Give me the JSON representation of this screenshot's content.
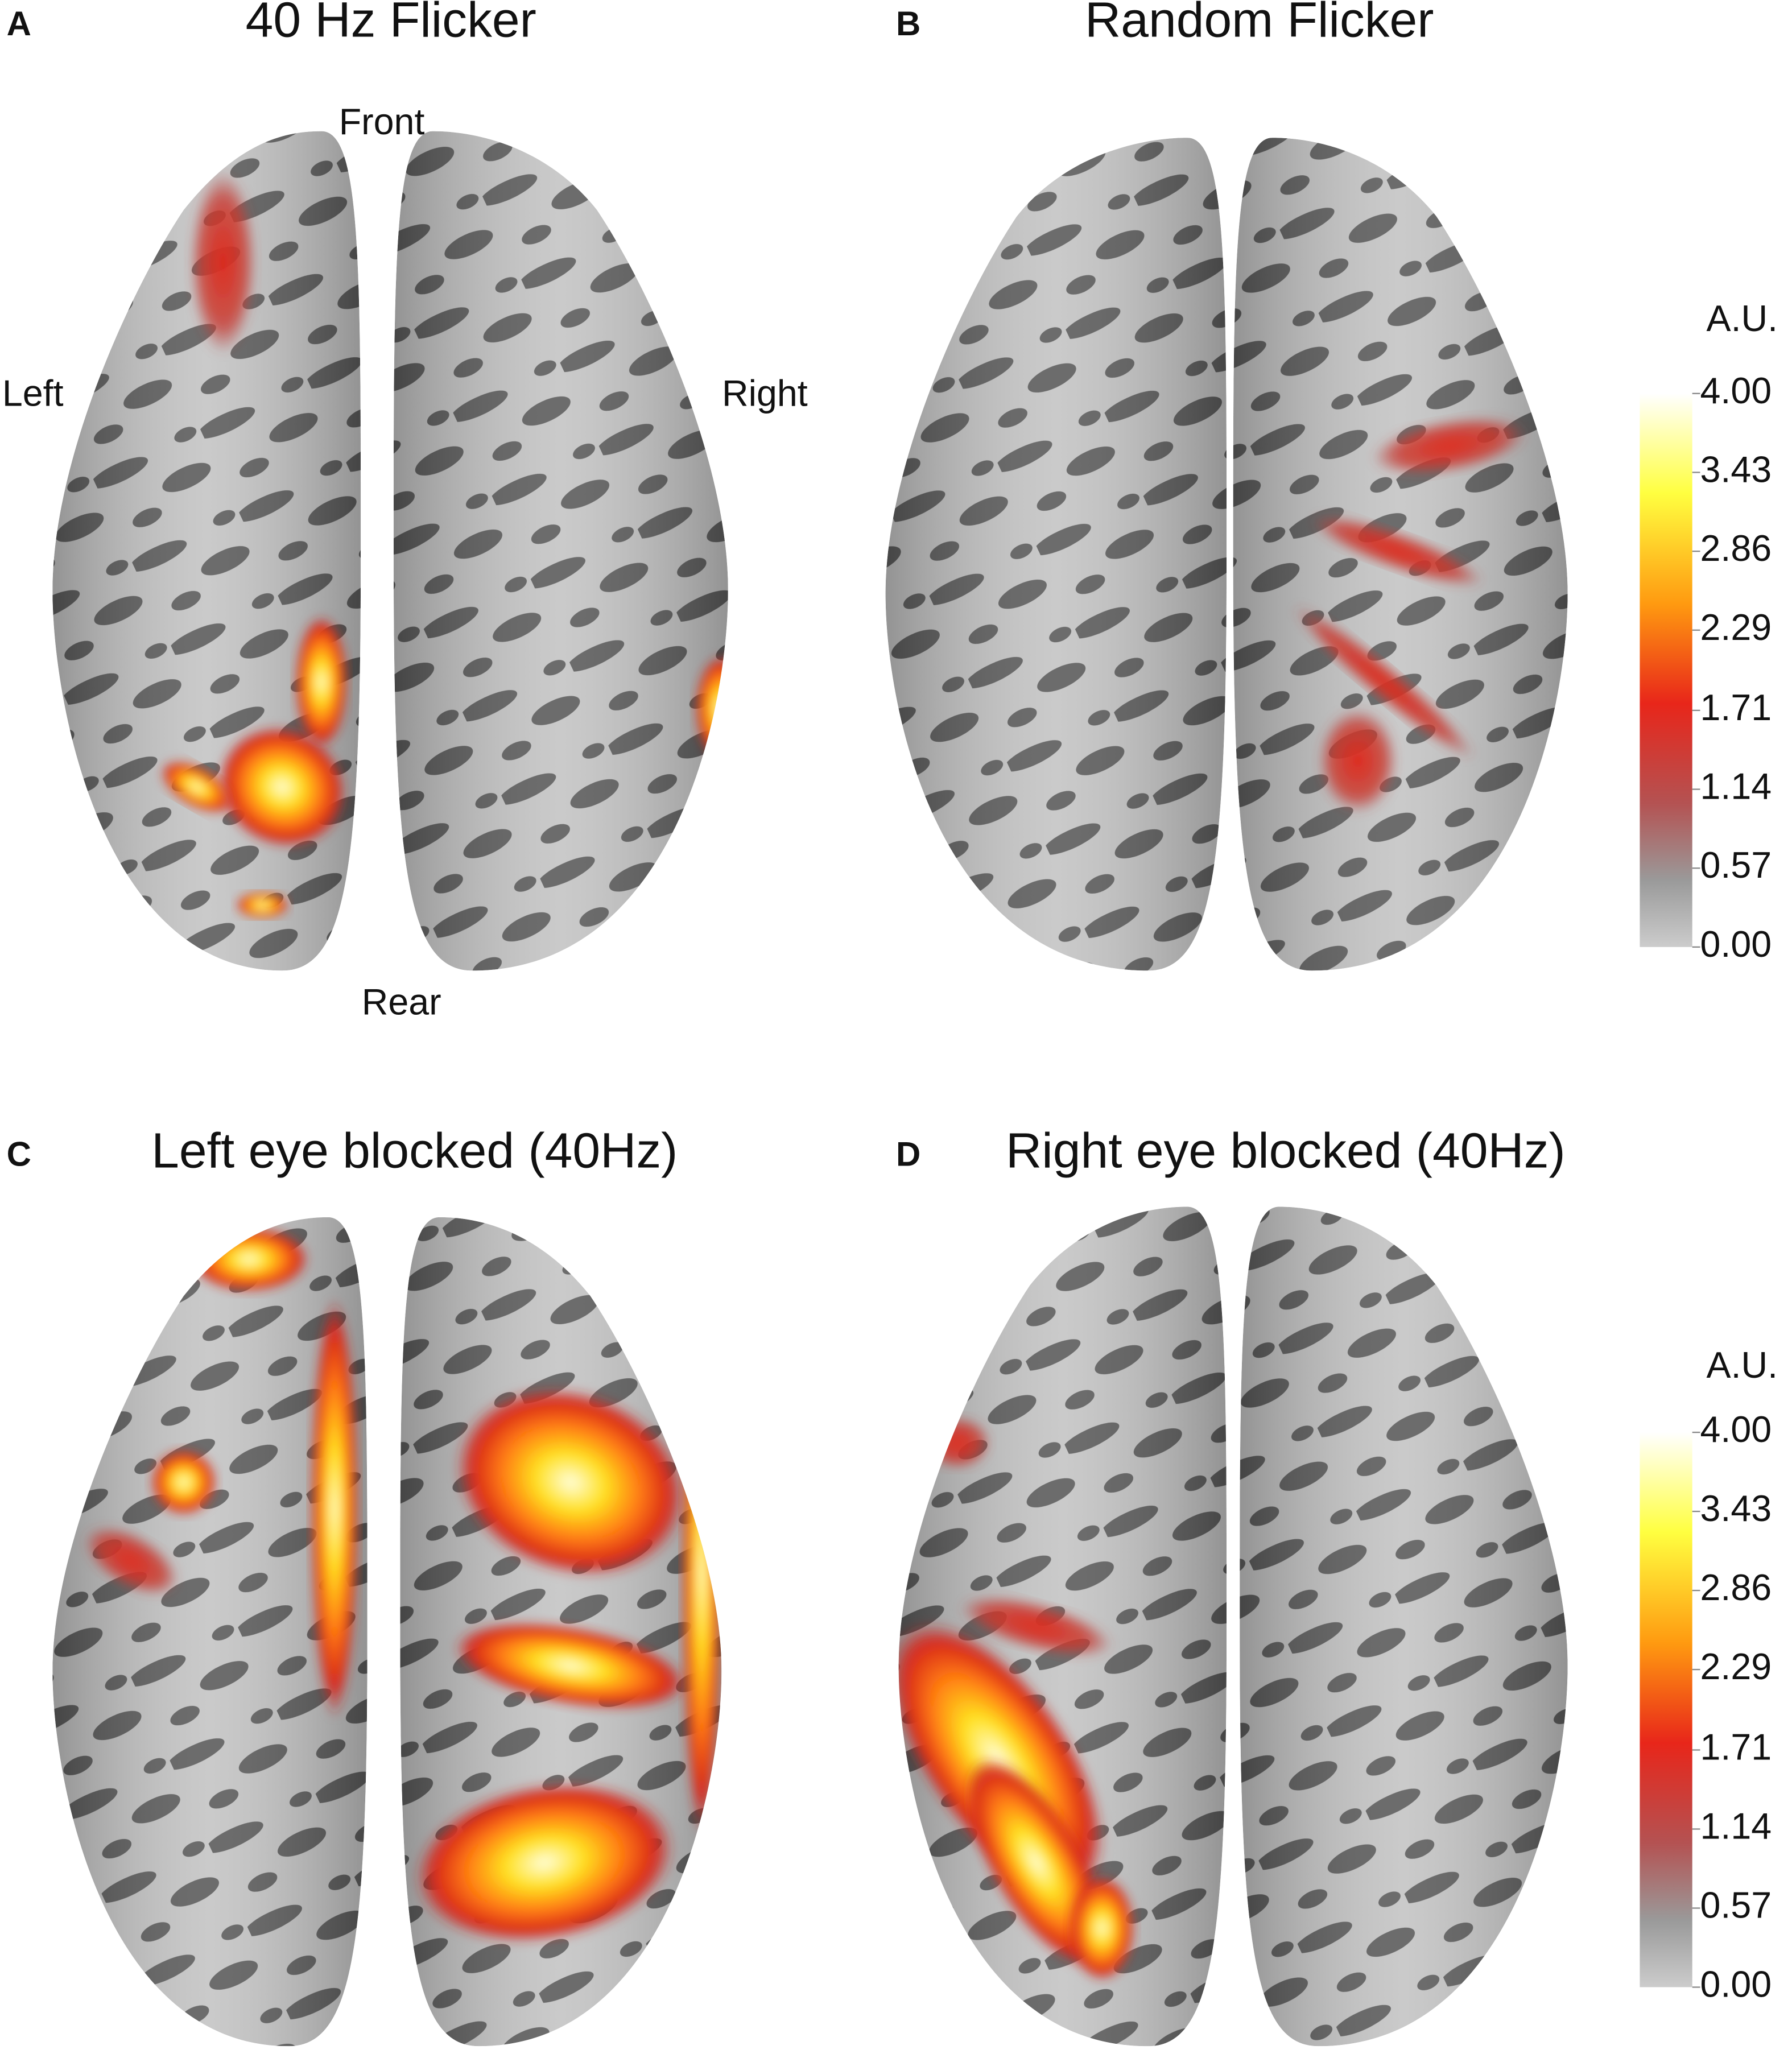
{
  "panels": [
    {
      "letter": "A",
      "title": "40 Hz Flicker"
    },
    {
      "letter": "B",
      "title": "Random Flicker"
    },
    {
      "letter": "C",
      "title": "Left eye blocked (40Hz)"
    },
    {
      "letter": "D",
      "title": "Right eye blocked (40Hz)"
    }
  ],
  "orientation": {
    "front": "Front",
    "rear": "Rear",
    "left": "Left",
    "right": "Right"
  },
  "colorbars": [
    {
      "unit": "A.U.",
      "ticks": [
        {
          "value": 4,
          "label": "4.00"
        },
        {
          "value": 3.43,
          "label": "3.43"
        },
        {
          "value": 2.86,
          "label": "2.86"
        },
        {
          "value": 2.29,
          "label": "2.29"
        },
        {
          "value": 1.71,
          "label": "1.71"
        },
        {
          "value": 1.14,
          "label": "1.14"
        },
        {
          "value": 0.57,
          "label": "0.57"
        },
        {
          "value": 0,
          "label": "0.00"
        }
      ]
    },
    {
      "unit": "A.U.",
      "ticks": [
        {
          "value": 4,
          "label": "4.00"
        },
        {
          "value": 3.43,
          "label": "3.43"
        },
        {
          "value": 2.86,
          "label": "2.86"
        },
        {
          "value": 2.29,
          "label": "2.29"
        },
        {
          "value": 1.71,
          "label": "1.71"
        },
        {
          "value": 1.14,
          "label": "1.14"
        },
        {
          "value": 0.57,
          "label": "0.57"
        },
        {
          "value": 0,
          "label": "0.00"
        }
      ]
    }
  ]
}
